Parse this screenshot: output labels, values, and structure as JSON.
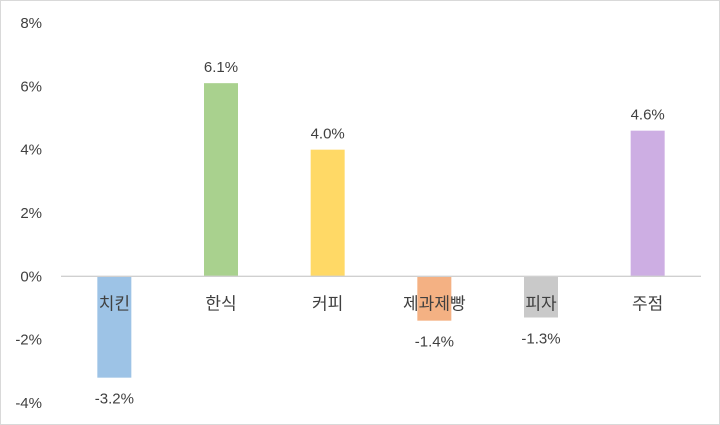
{
  "chart_data": {
    "type": "bar",
    "categories": [
      "치킨",
      "한식",
      "커피",
      "제과제빵",
      "피자",
      "주점"
    ],
    "values": [
      -3.2,
      6.1,
      4.0,
      -1.4,
      -1.3,
      4.6
    ],
    "data_labels": [
      "-3.2%",
      "6.1%",
      "4.0%",
      "-1.4%",
      "-1.3%",
      "4.6%"
    ],
    "colors": [
      "#9dc3e6",
      "#a9d18e",
      "#ffd966",
      "#f4b183",
      "#c9c9c9",
      "#cdaee3"
    ],
    "ylim": [
      -4,
      8
    ],
    "yticks": [
      8,
      6,
      4,
      2,
      0,
      -2,
      -4
    ],
    "ytick_labels": [
      "8%",
      "6%",
      "4%",
      "2%",
      "0%",
      "-2%",
      "-4%"
    ],
    "grid": false,
    "legend": "none",
    "title": "",
    "xlabel": "",
    "ylabel": ""
  }
}
